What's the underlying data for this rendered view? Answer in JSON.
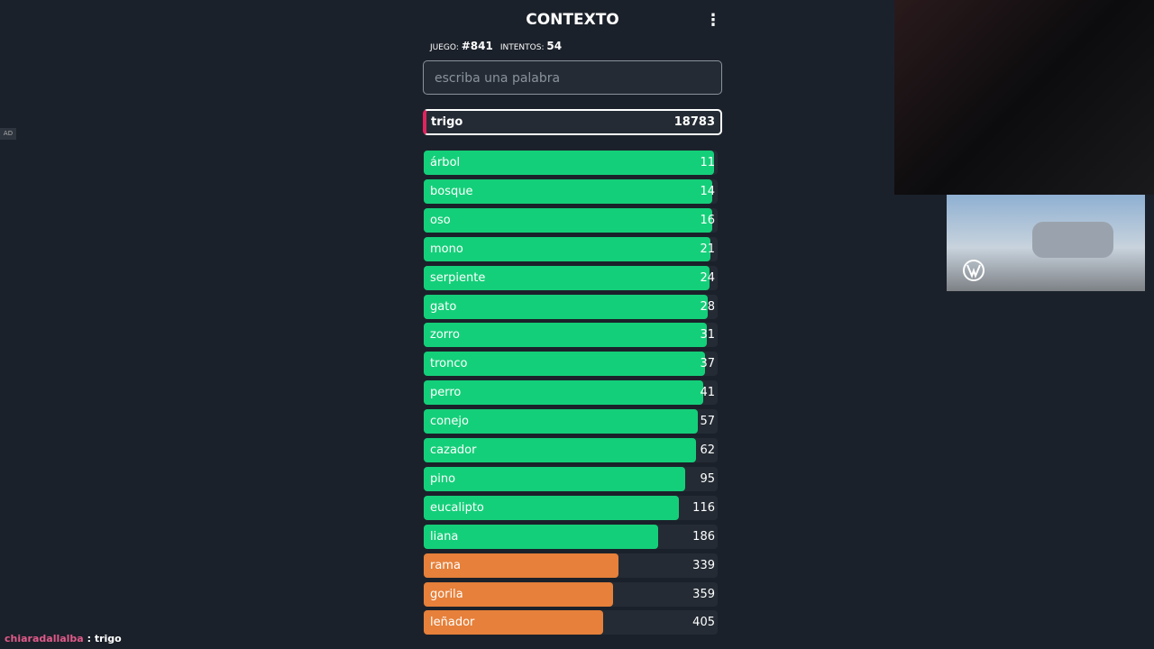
{
  "header": {
    "title": "CONTEXTO"
  },
  "meta": {
    "game_label": "JUEGO:",
    "game": "#841",
    "attempts_label": "INTENTOS:",
    "attempts": "54"
  },
  "input": {
    "placeholder": "escriba una palabra"
  },
  "last_guess": {
    "word": "trigo",
    "rank": 18783
  },
  "guesses": [
    {
      "word": "árbol",
      "rank": 11
    },
    {
      "word": "bosque",
      "rank": 14
    },
    {
      "word": "oso",
      "rank": 16
    },
    {
      "word": "mono",
      "rank": 21
    },
    {
      "word": "serpiente",
      "rank": 24
    },
    {
      "word": "gato",
      "rank": 28
    },
    {
      "word": "zorro",
      "rank": 31
    },
    {
      "word": "tronco",
      "rank": 37
    },
    {
      "word": "perro",
      "rank": 41
    },
    {
      "word": "conejo",
      "rank": 57
    },
    {
      "word": "cazador",
      "rank": 62
    },
    {
      "word": "pino",
      "rank": 95
    },
    {
      "word": "eucalipto",
      "rank": 116
    },
    {
      "word": "liana",
      "rank": 186
    },
    {
      "word": "rama",
      "rank": 339
    },
    {
      "word": "gorila",
      "rank": 359
    },
    {
      "word": "leñador",
      "rank": 405
    }
  ],
  "ad_badge": "AD",
  "chat": {
    "user": "chiaradallalba",
    "separator": ":",
    "message": "trigo"
  }
}
